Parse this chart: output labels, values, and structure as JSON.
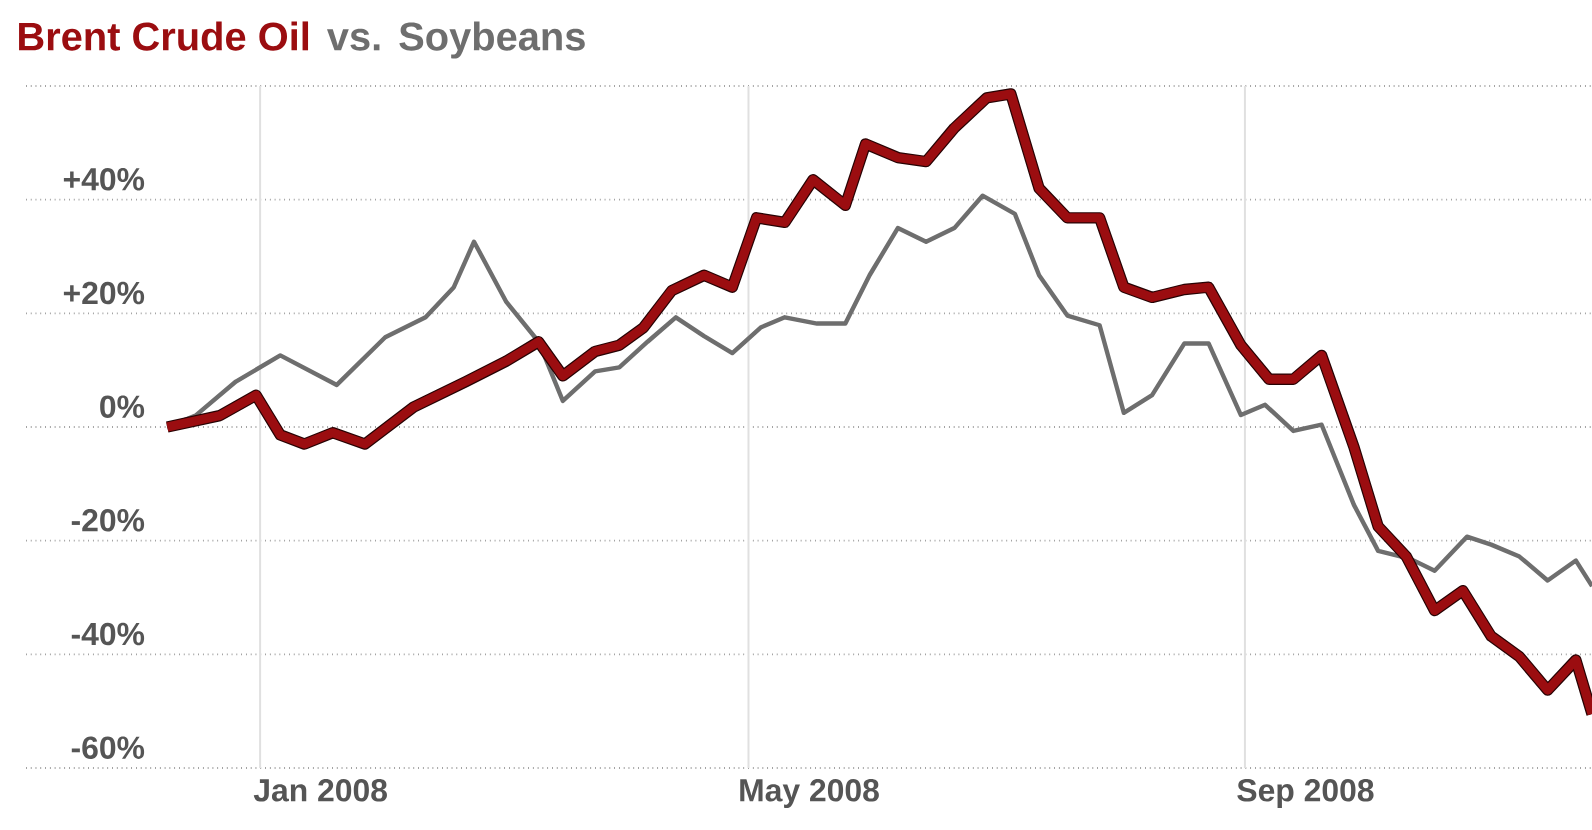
{
  "chart_data": {
    "type": "line",
    "title": "vs.",
    "legend": "top left",
    "grid": true,
    "marker": "none",
    "line_style": "solid",
    "xlim": [
      "2007-11-04",
      "2008-11-26"
    ],
    "ylim": [
      -60,
      60
    ],
    "xticks": [
      {
        "value": "2008-01-01",
        "label": null
      },
      {
        "value": "2008-01-16",
        "label": "Jan 2008"
      },
      {
        "value": "2008-05-01",
        "label": null
      },
      {
        "value": "2008-05-16",
        "label": "May 2008"
      },
      {
        "value": "2008-09-01",
        "label": null
      },
      {
        "value": "2008-09-16",
        "label": "Sep 2008"
      }
    ],
    "yticks": [
      {
        "value": -60,
        "label": "-60%"
      },
      {
        "value": -40,
        "label": "-40%"
      },
      {
        "value": -20,
        "label": "-20%"
      },
      {
        "value": 0,
        "label": "0%"
      },
      {
        "value": 20,
        "label": "+20%"
      },
      {
        "value": 40,
        "label": "+40%"
      },
      {
        "value": 60,
        "label": null
      }
    ],
    "series": [
      {
        "name": "Brent Crude Oil",
        "color": "#9b0d10",
        "x": [
          "2007-12-09",
          "2007-12-22",
          "2007-12-31",
          "2008-01-06",
          "2008-01-12",
          "2008-01-19",
          "2008-01-27",
          "2008-02-08",
          "2008-02-21",
          "2008-03-02",
          "2008-03-10",
          "2008-03-16",
          "2008-03-24",
          "2008-03-30",
          "2008-04-05",
          "2008-04-12",
          "2008-04-20",
          "2008-04-27",
          "2008-05-03",
          "2008-05-10",
          "2008-05-17",
          "2008-05-25",
          "2008-05-30",
          "2008-06-07",
          "2008-06-14",
          "2008-06-21",
          "2008-06-29",
          "2008-07-05",
          "2008-07-12",
          "2008-07-19",
          "2008-07-27",
          "2008-08-02",
          "2008-08-09",
          "2008-08-17",
          "2008-08-23",
          "2008-08-31",
          "2008-09-07",
          "2008-09-13",
          "2008-09-20",
          "2008-09-28",
          "2008-10-04",
          "2008-10-11",
          "2008-10-18",
          "2008-10-25",
          "2008-11-01",
          "2008-11-08",
          "2008-11-15",
          "2008-11-22",
          "2008-11-26"
        ],
        "values": [
          0,
          2,
          5.6,
          -1.4,
          -3,
          -1,
          -3,
          3.5,
          8,
          11.6,
          15,
          9,
          13.3,
          14.4,
          17.5,
          24,
          26.7,
          24.6,
          36.8,
          36,
          43.5,
          39,
          49.8,
          47.4,
          46.7,
          52.6,
          57.9,
          58.6,
          42,
          36.8,
          36.8,
          24.6,
          22.8,
          24.2,
          24.6,
          14.4,
          8.4,
          8.4,
          12.6,
          -3.5,
          -17.5,
          -22.8,
          -32.3,
          -28.8,
          -36.8,
          -40.4,
          -46.3,
          -41,
          -50.5
        ]
      },
      {
        "name": "Soybeans",
        "color": "#6e6e6e",
        "x": [
          "2007-12-09",
          "2007-12-16",
          "2007-12-26",
          "2008-01-06",
          "2008-01-20",
          "2008-02-01",
          "2008-02-11",
          "2008-02-18",
          "2008-02-23",
          "2008-03-02",
          "2008-03-10",
          "2008-03-16",
          "2008-03-24",
          "2008-03-30",
          "2008-04-06",
          "2008-04-13",
          "2008-04-20",
          "2008-04-27",
          "2008-05-04",
          "2008-05-10",
          "2008-05-18",
          "2008-05-25",
          "2008-05-31",
          "2008-06-07",
          "2008-06-14",
          "2008-06-21",
          "2008-06-28",
          "2008-07-06",
          "2008-07-12",
          "2008-07-19",
          "2008-07-27",
          "2008-08-02",
          "2008-08-09",
          "2008-08-17",
          "2008-08-23",
          "2008-08-31",
          "2008-09-06",
          "2008-09-13",
          "2008-09-20",
          "2008-09-28",
          "2008-10-04",
          "2008-10-12",
          "2008-10-18",
          "2008-10-26",
          "2008-11-01",
          "2008-11-08",
          "2008-11-15",
          "2008-11-22",
          "2008-11-26"
        ],
        "values": [
          0,
          2,
          8,
          12.6,
          7.4,
          15.8,
          19.3,
          24.6,
          32.6,
          22,
          15,
          4.6,
          9.8,
          10.5,
          15,
          19.3,
          16,
          13,
          17.5,
          19.3,
          18.2,
          18.2,
          26.7,
          35,
          32.6,
          35,
          40.7,
          37.5,
          26.7,
          19.6,
          17.9,
          2.5,
          5.6,
          14.7,
          14.7,
          2.1,
          3.9,
          -0.7,
          0.4,
          -13.7,
          -21.8,
          -23.2,
          -25.3,
          -19.3,
          -20.7,
          -22.8,
          -27,
          -23.5,
          -28
        ]
      }
    ]
  }
}
